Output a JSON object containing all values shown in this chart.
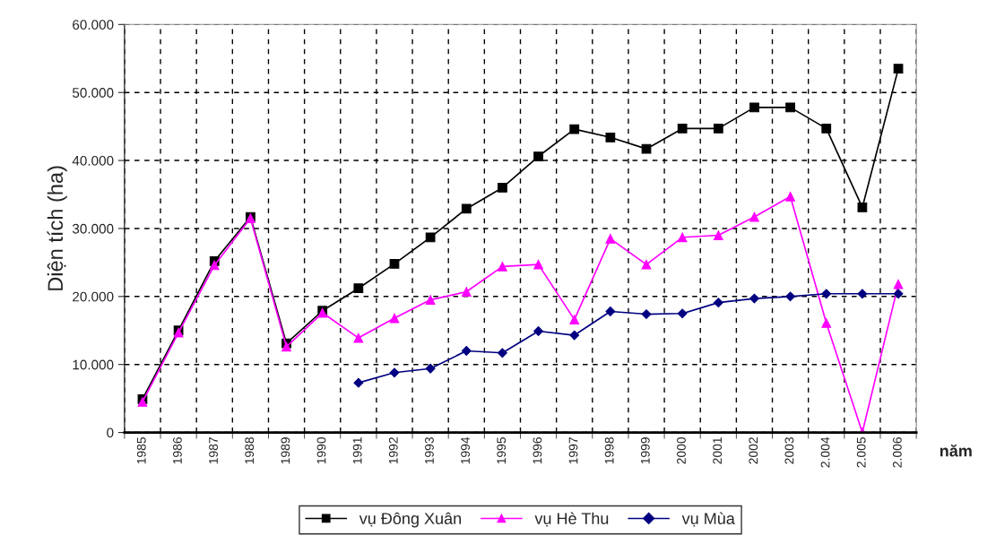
{
  "chart_data": {
    "type": "line",
    "xlabel": "năm",
    "ylabel": "Diện tích (ha)",
    "categories": [
      "1985",
      "1986",
      "1987",
      "1988",
      "1989",
      "1990",
      "1991",
      "1992",
      "1993",
      "1994",
      "1995",
      "1996",
      "1997",
      "1998",
      "1999",
      "2000",
      "2001",
      "2002",
      "2003",
      "2.004",
      "2.005",
      "2.006"
    ],
    "series": [
      {
        "name": "vụ Đông Xuân",
        "color": "#000000",
        "marker": "square",
        "values": [
          4900,
          15000,
          25200,
          31700,
          13100,
          17900,
          21200,
          24800,
          28700,
          32900,
          36000,
          40600,
          44600,
          43400,
          41700,
          44700,
          44700,
          47800,
          47800,
          44700,
          33100,
          53500
        ]
      },
      {
        "name": "vụ Hè Thu",
        "color": "#ff00ff",
        "marker": "triangle",
        "values": [
          4500,
          14700,
          24600,
          31500,
          12600,
          17600,
          13900,
          16800,
          19500,
          20700,
          24400,
          24700,
          16600,
          28500,
          24700,
          28700,
          29000,
          31700,
          34700,
          16100,
          0,
          21800
        ]
      },
      {
        "name": "vụ Mùa",
        "color": "#000080",
        "marker": "diamond",
        "values": [
          null,
          null,
          null,
          null,
          null,
          null,
          7300,
          8800,
          9400,
          12000,
          11700,
          14900,
          14300,
          17800,
          17400,
          17500,
          19100,
          19700,
          20000,
          20400,
          20400,
          20400
        ]
      }
    ],
    "ylim": [
      0,
      60000
    ],
    "yticks": [
      {
        "value": 0,
        "label": "0"
      },
      {
        "value": 10000,
        "label": "10.000"
      },
      {
        "value": 20000,
        "label": "20.000"
      },
      {
        "value": 30000,
        "label": "30.000"
      },
      {
        "value": 40000,
        "label": "40.000"
      },
      {
        "value": 50000,
        "label": "50.000"
      },
      {
        "value": 60000,
        "label": "60.000"
      }
    ],
    "grid": true,
    "legend": "bottom",
    "line_style": "solid"
  }
}
